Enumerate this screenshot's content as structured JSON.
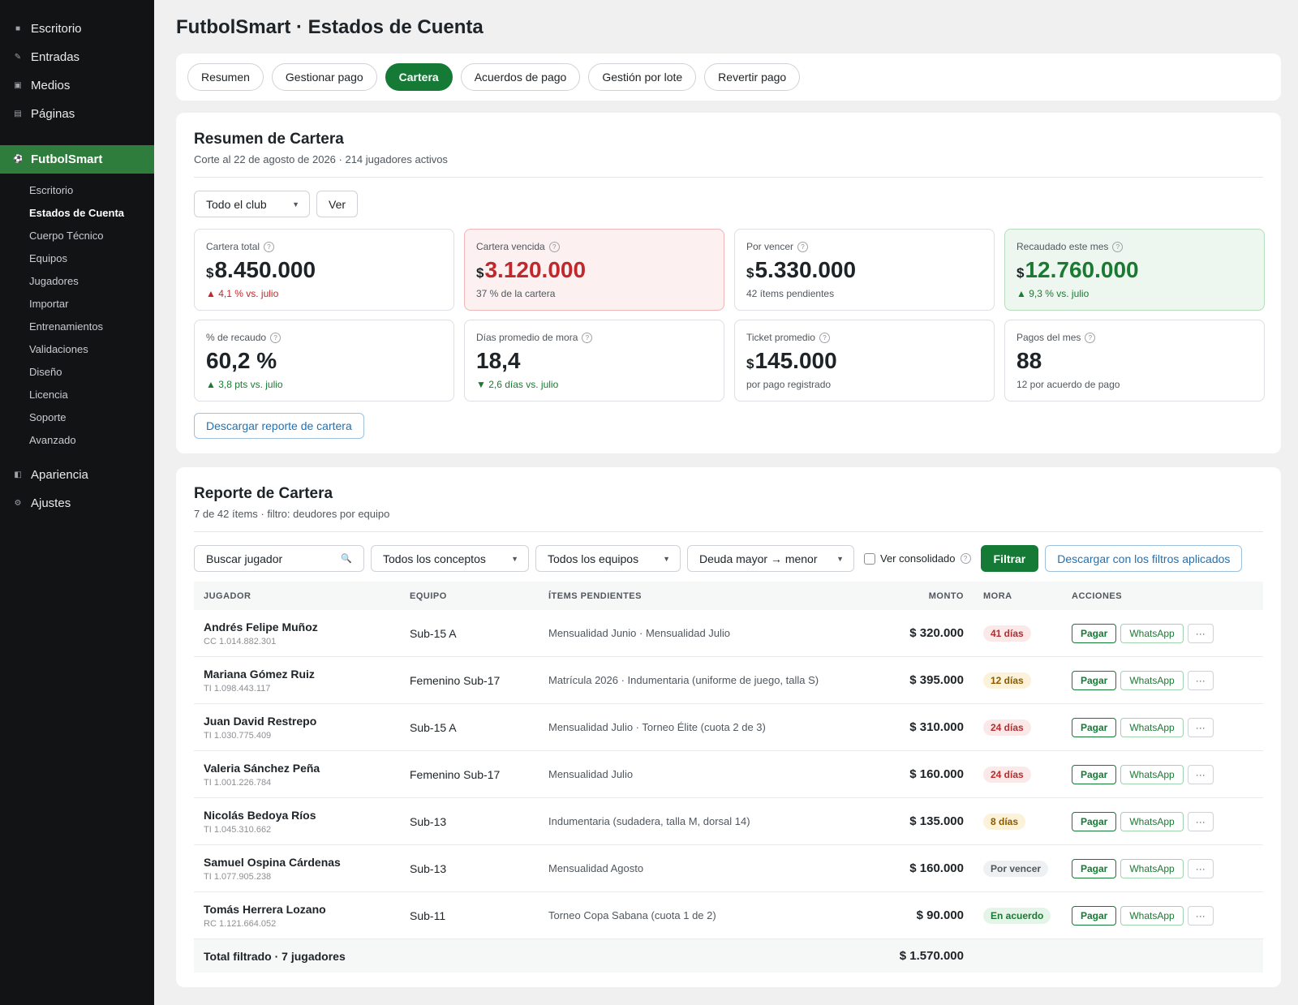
{
  "sidebar": {
    "top_items": [
      {
        "label": "Escritorio",
        "icon": "dashboard-icon"
      },
      {
        "label": "Entradas",
        "icon": "pin-icon"
      },
      {
        "label": "Medios",
        "icon": "media-icon"
      },
      {
        "label": "Páginas",
        "icon": "pages-icon"
      }
    ],
    "plugin": {
      "label": "FutbolSmart",
      "icon": "soccer-ball-icon"
    },
    "sub_items": [
      "Escritorio",
      "Estados de Cuenta",
      "Cuerpo Técnico",
      "Equipos",
      "Jugadores",
      "Importar",
      "Entrenamientos",
      "Validaciones",
      "Diseño",
      "Licencia",
      "Soporte",
      "Avanzado"
    ],
    "current_sub": "Estados de Cuenta",
    "bottom_items": [
      {
        "label": "Apariencia",
        "icon": "appearance-icon"
      },
      {
        "label": "Ajustes",
        "icon": "settings-icon"
      }
    ]
  },
  "page": {
    "title": "FutbolSmart · Estados de Cuenta"
  },
  "tabs": [
    {
      "label": "Resumen",
      "active": false
    },
    {
      "label": "Gestionar pago",
      "active": false
    },
    {
      "label": "Cartera",
      "active": true
    },
    {
      "label": "Acuerdos de pago",
      "active": false
    },
    {
      "label": "Gestión por lote",
      "active": false
    },
    {
      "label": "Revertir pago",
      "active": false
    }
  ],
  "summary": {
    "title": "Resumen de Cartera",
    "subtitle": "Corte al 22 de agosto de 2026 · 214 jugadores activos",
    "scope_select": "Todo el club",
    "view_button": "Ver",
    "kpis": [
      {
        "label": "Cartera total",
        "currency": "$",
        "value": "8.450.000",
        "note": "▲ 4,1 % vs. julio",
        "variant": "plain",
        "note_style": "up-bad"
      },
      {
        "label": "Cartera vencida",
        "currency": "$",
        "value": "3.120.000",
        "note": "37 % de la cartera",
        "variant": "red",
        "note_style": ""
      },
      {
        "label": "Por vencer",
        "currency": "$",
        "value": "5.330.000",
        "note": "42 ítems pendientes",
        "variant": "plain",
        "note_style": ""
      },
      {
        "label": "Recaudado este mes",
        "currency": "$",
        "value": "12.760.000",
        "note": "▲ 9,3 % vs. julio",
        "variant": "green",
        "note_style": "up-good"
      },
      {
        "label": "% de recaudo",
        "currency": "",
        "value": "60,2 %",
        "note": "▲ 3,8 pts vs. julio",
        "variant": "plain",
        "note_style": "up-good"
      },
      {
        "label": "Días promedio de mora",
        "currency": "",
        "value": "18,4",
        "note": "▼ 2,6 días vs. julio",
        "variant": "plain",
        "note_style": "down-good"
      },
      {
        "label": "Ticket promedio",
        "currency": "$",
        "value": "145.000",
        "note": "por pago registrado",
        "variant": "plain",
        "note_style": ""
      },
      {
        "label": "Pagos del mes",
        "currency": "",
        "value": "88",
        "note": "12 por acuerdo de pago",
        "variant": "plain",
        "note_style": ""
      }
    ],
    "download_label": "Descargar reporte de cartera"
  },
  "report": {
    "title": "Reporte de Cartera",
    "subtitle": "7 de 42 ítems · filtro: deudores por equipo",
    "search_placeholder": "Buscar jugador",
    "concept_select": "Todos los conceptos",
    "team_select": "Todos los equipos",
    "sort_select": "Deuda mayor → menor",
    "consolidated_label": "Ver consolidado",
    "filter_button": "Filtrar",
    "download_filtered": "Descargar con los filtros aplicados",
    "columns": [
      "JUGADOR",
      "EQUIPO",
      "ÍTEMS PENDIENTES",
      "MONTO",
      "MORA",
      "ACCIONES"
    ],
    "actions": {
      "pay": "Pagar",
      "whatsapp": "WhatsApp",
      "more": "···"
    },
    "rows": [
      {
        "name": "Andrés Felipe Muñoz",
        "doc": "CC 1.014.882.301",
        "team": "Sub-15 A",
        "items": "Mensualidad Junio · Mensualidad Julio",
        "amount": "$ 320.000",
        "mora": "41 días",
        "mora_style": "b-red"
      },
      {
        "name": "Mariana Gómez Ruiz",
        "doc": "TI 1.098.443.117",
        "team": "Femenino Sub-17",
        "items": "Matrícula 2026 · Indumentaria (uniforme de juego, talla S)",
        "amount": "$ 395.000",
        "mora": "12 días",
        "mora_style": "b-amber"
      },
      {
        "name": "Juan David Restrepo",
        "doc": "TI 1.030.775.409",
        "team": "Sub-15 A",
        "items": "Mensualidad Julio · Torneo Élite (cuota 2 de 3)",
        "amount": "$ 310.000",
        "mora": "24 días",
        "mora_style": "b-red"
      },
      {
        "name": "Valeria Sánchez Peña",
        "doc": "TI 1.001.226.784",
        "team": "Femenino Sub-17",
        "items": "Mensualidad Julio",
        "amount": "$ 160.000",
        "mora": "24 días",
        "mora_style": "b-red"
      },
      {
        "name": "Nicolás Bedoya Ríos",
        "doc": "TI 1.045.310.662",
        "team": "Sub-13",
        "items": "Indumentaria (sudadera, talla M, dorsal 14)",
        "amount": "$ 135.000",
        "mora": "8 días",
        "mora_style": "b-amber"
      },
      {
        "name": "Samuel Ospina Cárdenas",
        "doc": "TI 1.077.905.238",
        "team": "Sub-13",
        "items": "Mensualidad Agosto",
        "amount": "$ 160.000",
        "mora": "Por vencer",
        "mora_style": "b-gray"
      },
      {
        "name": "Tomás Herrera Lozano",
        "doc": "RC 1.121.664.052",
        "team": "Sub-11",
        "items": "Torneo Copa Sabana (cuota 1 de 2)",
        "amount": "$ 90.000",
        "mora": "En acuerdo",
        "mora_style": "b-green"
      }
    ],
    "total_label": "Total filtrado · 7 jugadores",
    "total_amount": "$ 1.570.000"
  }
}
